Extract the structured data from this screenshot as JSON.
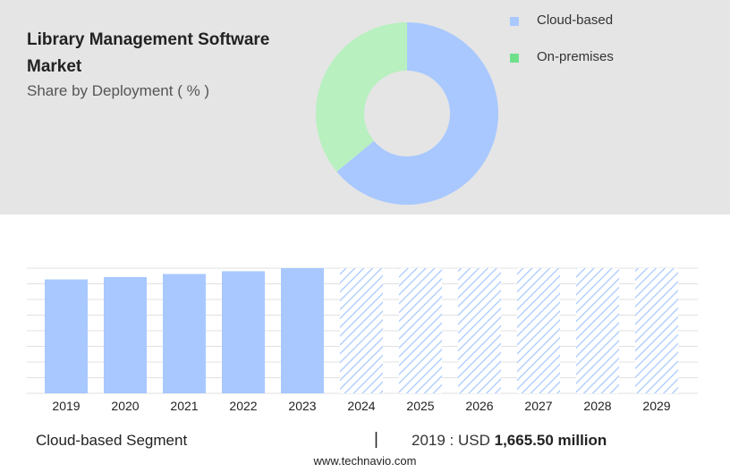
{
  "header": {
    "title": "Library Management Software Market",
    "subtitle": "Share by Deployment ( % )"
  },
  "legend": [
    {
      "label": "Cloud-based",
      "color": "#a8c8ff"
    },
    {
      "label": "On-premises",
      "color": "#6ee08a"
    }
  ],
  "chart_data": [
    {
      "type": "pie",
      "subtitle": "Share by Deployment ( % )",
      "categories": [
        "Cloud-based",
        "On-premises"
      ],
      "values": [
        64,
        36
      ],
      "colors": [
        "#a8c8ff",
        "#b8f0c0"
      ]
    },
    {
      "type": "bar",
      "categories": [
        "2019",
        "2020",
        "2021",
        "2022",
        "2023",
        "2024",
        "2025",
        "2026",
        "2027",
        "2028",
        "2029"
      ],
      "values": [
        1665.5,
        1700,
        1745,
        1785,
        1830,
        1830,
        1830,
        1830,
        1830,
        1830,
        1830
      ],
      "forecast_from": "2024",
      "color": "#a8c8ff",
      "grid": true
    }
  ],
  "footer": {
    "segment": "Cloud-based Segment",
    "separator": "|",
    "year_label": "2019 : USD",
    "value": "1,665.50 million",
    "source": "www.technavio.com"
  }
}
